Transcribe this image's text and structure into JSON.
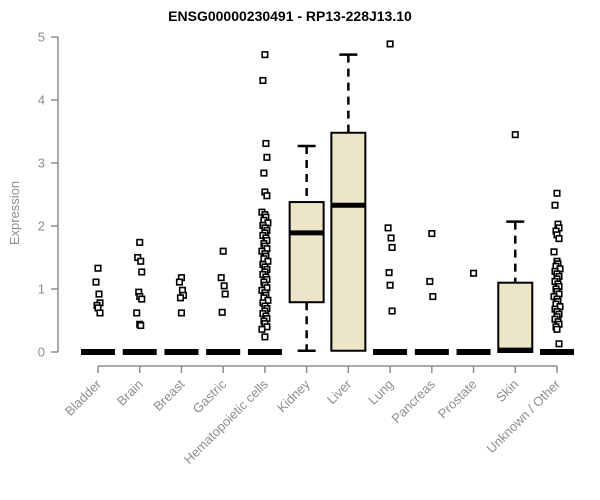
{
  "chart_data": {
    "type": "boxplot",
    "title": "ENSG00000230491 - RP13-228J13.10",
    "ylabel": "Expression",
    "xlabel": "",
    "ylim": [
      0,
      5
    ],
    "yticks": [
      0,
      1,
      2,
      3,
      4,
      5
    ],
    "grid": false,
    "legend": false,
    "categories": [
      "Bladder",
      "Brain",
      "Breast",
      "Gastric",
      "Hematopoietic cells",
      "Kidney",
      "Liver",
      "Lung",
      "Pancreas",
      "Prostate",
      "Skin",
      "Unknown / Other"
    ],
    "boxes": [
      {
        "category": "Bladder",
        "q1": 0,
        "median": 0,
        "q3": 0,
        "whisker_low": 0,
        "whisker_high": 0,
        "outliers": [
          1.33,
          1.11,
          0.92,
          0.78,
          0.74,
          0.7,
          0.62
        ]
      },
      {
        "category": "Brain",
        "q1": 0,
        "median": 0,
        "q3": 0,
        "whisker_low": 0,
        "whisker_high": 0,
        "outliers": [
          1.74,
          1.5,
          1.44,
          1.27,
          0.95,
          0.88,
          0.84,
          0.62,
          0.44,
          0.42
        ]
      },
      {
        "category": "Breast",
        "q1": 0,
        "median": 0,
        "q3": 0,
        "whisker_low": 0,
        "whisker_high": 0,
        "outliers": [
          1.18,
          1.11,
          0.98,
          0.9,
          0.86,
          0.62
        ]
      },
      {
        "category": "Gastric",
        "q1": 0,
        "median": 0,
        "q3": 0,
        "whisker_low": 0,
        "whisker_high": 0,
        "outliers": [
          1.6,
          1.18,
          1.05,
          0.92,
          0.63
        ]
      },
      {
        "category": "Hematopoietic cells",
        "q1": 0,
        "median": 0,
        "q3": 0,
        "whisker_low": 0,
        "whisker_high": 0,
        "outliers": [
          4.72,
          4.31,
          3.31,
          3.09,
          2.84,
          2.54,
          2.48,
          2.22,
          2.18,
          2.14,
          2.09,
          2.05,
          2.01,
          1.97,
          1.93,
          1.89,
          1.85,
          1.81,
          1.77,
          1.72,
          1.68,
          1.64,
          1.6,
          1.56,
          1.52,
          1.48,
          1.44,
          1.39,
          1.35,
          1.31,
          1.27,
          1.23,
          1.19,
          1.15,
          1.11,
          1.06,
          1.02,
          0.98,
          0.94,
          0.9,
          0.86,
          0.82,
          0.78,
          0.73,
          0.69,
          0.65,
          0.61,
          0.57,
          0.53,
          0.49,
          0.45,
          0.4,
          0.36,
          0.24
        ]
      },
      {
        "category": "Kidney",
        "q1": 0.79,
        "median": 1.89,
        "q3": 2.38,
        "whisker_low": 0.02,
        "whisker_high": 3.27,
        "outliers": []
      },
      {
        "category": "Liver",
        "q1": 0.02,
        "median": 2.33,
        "q3": 3.48,
        "whisker_low": 0.02,
        "whisker_high": 4.72,
        "outliers": []
      },
      {
        "category": "Lung",
        "q1": 0,
        "median": 0,
        "q3": 0,
        "whisker_low": 0,
        "whisker_high": 0,
        "outliers": [
          4.89,
          1.97,
          1.81,
          1.66,
          1.26,
          1.06,
          0.65
        ]
      },
      {
        "category": "Pancreas",
        "q1": 0,
        "median": 0,
        "q3": 0,
        "whisker_low": 0,
        "whisker_high": 0,
        "outliers": [
          1.88,
          1.12,
          0.88
        ]
      },
      {
        "category": "Prostate",
        "q1": 0,
        "median": 0,
        "q3": 0,
        "whisker_low": 0,
        "whisker_high": 0,
        "outliers": [
          1.25
        ]
      },
      {
        "category": "Skin",
        "q1": 0.0,
        "median": 0.03,
        "q3": 1.1,
        "whisker_low": 0.0,
        "whisker_high": 2.07,
        "outliers": [
          3.45
        ]
      },
      {
        "category": "Unknown / Other",
        "q1": 0,
        "median": 0,
        "q3": 0,
        "whisker_low": 0,
        "whisker_high": 0,
        "outliers": [
          2.52,
          2.33,
          2.03,
          1.97,
          1.92,
          1.86,
          1.8,
          1.59,
          1.44,
          1.4,
          1.36,
          1.32,
          1.28,
          1.24,
          1.2,
          1.16,
          1.12,
          1.08,
          1.04,
          1.0,
          0.96,
          0.92,
          0.88,
          0.84,
          0.8,
          0.76,
          0.72,
          0.68,
          0.64,
          0.6,
          0.56,
          0.52,
          0.48,
          0.44,
          0.4,
          0.36,
          0.13
        ]
      }
    ],
    "colors": {
      "box_fill": "#ece5c8",
      "box_stroke": "#000000",
      "median": "#000000",
      "whisker": "#000000",
      "outlier_stroke": "#000000",
      "outlier_fill": "#ffffff",
      "axis": "#8e8e8e",
      "tick_label": "#8e8e8e",
      "title": "#000000",
      "background": "#ffffff"
    }
  }
}
